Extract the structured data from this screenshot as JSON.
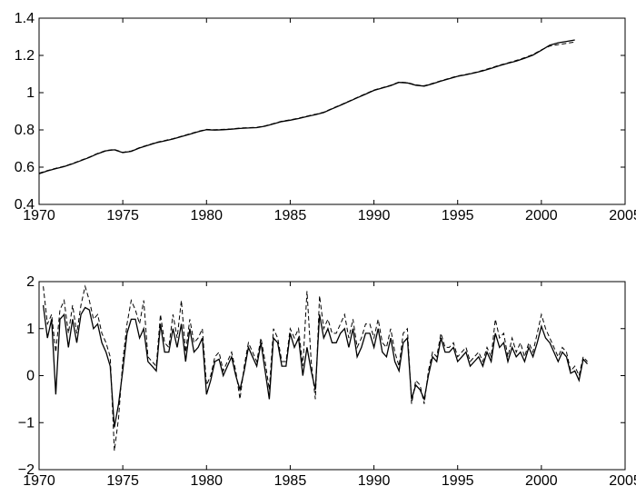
{
  "chart_data": [
    {
      "type": "line",
      "xlim": [
        1970,
        2005
      ],
      "ylim": [
        0.4,
        1.4
      ],
      "x_ticks": [
        1970,
        1975,
        1980,
        1985,
        1990,
        1995,
        2000,
        2005
      ],
      "y_ticks": [
        0.4,
        0.6,
        0.8,
        1,
        1.2,
        1.4
      ],
      "x_tick_labels": [
        "1970",
        "1975",
        "1980",
        "1985",
        "1990",
        "1995",
        "2000",
        "2005"
      ],
      "y_tick_labels": [
        "0.4",
        "0.6",
        "0.8",
        "1",
        "1.2",
        "1.4"
      ],
      "grid": false,
      "series": [
        {
          "style": "solid",
          "x": [
            1970.0,
            1970.5,
            1971.0,
            1971.5,
            1972.0,
            1972.5,
            1973.0,
            1973.5,
            1974.0,
            1974.5,
            1975.0,
            1975.5,
            1976.0,
            1976.5,
            1977.0,
            1977.5,
            1978.0,
            1978.5,
            1979.0,
            1979.5,
            1980.0,
            1980.5,
            1981.0,
            1981.5,
            1982.0,
            1982.5,
            1983.0,
            1983.5,
            1984.0,
            1984.5,
            1985.0,
            1985.5,
            1986.0,
            1986.5,
            1987.0,
            1987.5,
            1988.0,
            1988.5,
            1989.0,
            1989.5,
            1990.0,
            1990.5,
            1991.0,
            1991.5,
            1992.0,
            1992.5,
            1993.0,
            1993.5,
            1994.0,
            1994.5,
            1995.0,
            1995.5,
            1996.0,
            1996.5,
            1997.0,
            1997.5,
            1998.0,
            1998.5,
            1999.0,
            1999.5,
            2000.0,
            2000.5,
            2001.0,
            2001.5,
            2002.0
          ],
          "y": [
            0.565,
            0.58,
            0.592,
            0.603,
            0.618,
            0.635,
            0.652,
            0.672,
            0.688,
            0.693,
            0.678,
            0.685,
            0.703,
            0.717,
            0.731,
            0.741,
            0.751,
            0.764,
            0.777,
            0.79,
            0.801,
            0.799,
            0.801,
            0.804,
            0.808,
            0.81,
            0.812,
            0.82,
            0.832,
            0.845,
            0.852,
            0.861,
            0.872,
            0.882,
            0.893,
            0.913,
            0.932,
            0.952,
            0.972,
            0.992,
            1.012,
            1.025,
            1.038,
            1.055,
            1.052,
            1.04,
            1.035,
            1.048,
            1.062,
            1.075,
            1.088,
            1.096,
            1.106,
            1.117,
            1.13,
            1.145,
            1.158,
            1.17,
            1.185,
            1.202,
            1.228,
            1.255,
            1.268,
            1.275,
            1.283
          ]
        },
        {
          "style": "dashed",
          "x": [
            1970.0,
            1970.5,
            1971.0,
            1971.5,
            1972.0,
            1972.5,
            1973.0,
            1973.5,
            1974.0,
            1974.5,
            1975.0,
            1975.5,
            1976.0,
            1976.5,
            1977.0,
            1977.5,
            1978.0,
            1978.5,
            1979.0,
            1979.5,
            1980.0,
            1980.5,
            1981.0,
            1981.5,
            1982.0,
            1982.5,
            1983.0,
            1983.5,
            1984.0,
            1984.5,
            1985.0,
            1985.5,
            1986.0,
            1986.5,
            1987.0,
            1987.5,
            1988.0,
            1988.5,
            1989.0,
            1989.5,
            1990.0,
            1990.5,
            1991.0,
            1991.5,
            1992.0,
            1992.5,
            1993.0,
            1993.5,
            1994.0,
            1994.5,
            1995.0,
            1995.5,
            1996.0,
            1996.5,
            1997.0,
            1997.5,
            1998.0,
            1998.5,
            1999.0,
            1999.5,
            2000.0,
            2000.5,
            2001.0,
            2001.5,
            2002.0
          ],
          "y": [
            0.568,
            0.582,
            0.594,
            0.605,
            0.62,
            0.637,
            0.654,
            0.674,
            0.69,
            0.695,
            0.68,
            0.687,
            0.705,
            0.719,
            0.733,
            0.743,
            0.753,
            0.766,
            0.779,
            0.792,
            0.803,
            0.801,
            0.803,
            0.806,
            0.81,
            0.812,
            0.814,
            0.822,
            0.834,
            0.847,
            0.854,
            0.863,
            0.874,
            0.884,
            0.895,
            0.915,
            0.934,
            0.954,
            0.974,
            0.994,
            1.014,
            1.027,
            1.04,
            1.057,
            1.054,
            1.042,
            1.037,
            1.05,
            1.064,
            1.077,
            1.09,
            1.098,
            1.108,
            1.12,
            1.133,
            1.148,
            1.16,
            1.173,
            1.188,
            1.205,
            1.23,
            1.25,
            1.258,
            1.265,
            1.272
          ]
        }
      ]
    },
    {
      "type": "line",
      "xlim": [
        1970,
        2005
      ],
      "ylim": [
        -2,
        2
      ],
      "x_ticks": [
        1970,
        1975,
        1980,
        1985,
        1990,
        1995,
        2000,
        2005
      ],
      "y_ticks": [
        -2,
        -1,
        0,
        1,
        2
      ],
      "x_tick_labels": [
        "1970",
        "1975",
        "1980",
        "1985",
        "1990",
        "1995",
        "2000",
        "2005"
      ],
      "y_tick_labels": [
        "−2",
        "−1",
        "0",
        "1",
        "2"
      ],
      "grid": false,
      "series": [
        {
          "style": "solid",
          "x": [
            1970.25,
            1970.5,
            1970.75,
            1971.0,
            1971.25,
            1971.5,
            1971.75,
            1972.0,
            1972.25,
            1972.5,
            1972.75,
            1973.0,
            1973.25,
            1973.5,
            1973.75,
            1974.0,
            1974.25,
            1974.5,
            1974.75,
            1975.0,
            1975.25,
            1975.5,
            1975.75,
            1976.0,
            1976.25,
            1976.5,
            1976.75,
            1977.0,
            1977.25,
            1977.5,
            1977.75,
            1978.0,
            1978.25,
            1978.5,
            1978.75,
            1979.0,
            1979.25,
            1979.5,
            1979.75,
            1980.0,
            1980.25,
            1980.5,
            1980.75,
            1981.0,
            1981.25,
            1981.5,
            1981.75,
            1982.0,
            1982.25,
            1982.5,
            1982.75,
            1983.0,
            1983.25,
            1983.5,
            1983.75,
            1984.0,
            1984.25,
            1984.5,
            1984.75,
            1985.0,
            1985.25,
            1985.5,
            1985.75,
            1986.0,
            1986.25,
            1986.5,
            1986.75,
            1987.0,
            1987.25,
            1987.5,
            1987.75,
            1988.0,
            1988.25,
            1988.5,
            1988.75,
            1989.0,
            1989.25,
            1989.5,
            1989.75,
            1990.0,
            1990.25,
            1990.5,
            1990.75,
            1991.0,
            1991.25,
            1991.5,
            1991.75,
            1992.0,
            1992.25,
            1992.5,
            1992.75,
            1993.0,
            1993.25,
            1993.5,
            1993.75,
            1994.0,
            1994.25,
            1994.5,
            1994.75,
            1995.0,
            1995.25,
            1995.5,
            1995.75,
            1996.0,
            1996.25,
            1996.5,
            1996.75,
            1997.0,
            1997.25,
            1997.5,
            1997.75,
            1998.0,
            1998.25,
            1998.5,
            1998.75,
            1999.0,
            1999.25,
            1999.5,
            1999.75,
            2000.0,
            2000.25,
            2000.5,
            2000.75,
            2001.0,
            2001.25,
            2001.5,
            2001.75,
            2002.0,
            2002.25,
            2002.5,
            2002.75
          ],
          "y": [
            1.5,
            0.8,
            1.2,
            -0.4,
            1.2,
            1.3,
            0.6,
            1.2,
            0.7,
            1.3,
            1.45,
            1.4,
            1.0,
            1.1,
            0.7,
            0.5,
            0.2,
            -1.1,
            -0.6,
            0.1,
            0.9,
            1.2,
            1.2,
            0.8,
            1.0,
            0.3,
            0.2,
            0.1,
            1.1,
            0.5,
            0.5,
            1.0,
            0.6,
            1.1,
            0.3,
            1.0,
            0.5,
            0.6,
            0.8,
            -0.4,
            -0.1,
            0.3,
            0.35,
            0.0,
            0.2,
            0.4,
            0.0,
            -0.3,
            0.1,
            0.6,
            0.4,
            0.2,
            0.7,
            0.1,
            -0.5,
            0.8,
            0.7,
            0.2,
            0.2,
            0.9,
            0.6,
            0.8,
            0.0,
            0.6,
            0.1,
            -0.3,
            1.3,
            0.8,
            1.0,
            0.7,
            0.7,
            0.9,
            1.0,
            0.6,
            1.0,
            0.4,
            0.6,
            0.9,
            0.9,
            0.6,
            1.0,
            0.5,
            0.4,
            0.8,
            0.3,
            0.1,
            0.7,
            0.8,
            -0.5,
            -0.2,
            -0.3,
            -0.5,
            0.0,
            0.4,
            0.3,
            0.8,
            0.5,
            0.5,
            0.6,
            0.3,
            0.4,
            0.5,
            0.2,
            0.3,
            0.4,
            0.2,
            0.5,
            0.3,
            0.9,
            0.6,
            0.7,
            0.3,
            0.6,
            0.4,
            0.5,
            0.3,
            0.6,
            0.4,
            0.7,
            1.05,
            0.8,
            0.7,
            0.5,
            0.3,
            0.5,
            0.4,
            0.05,
            0.1,
            -0.1,
            0.35,
            0.25
          ]
        },
        {
          "style": "dashed",
          "x": [
            1970.25,
            1970.5,
            1970.75,
            1971.0,
            1971.25,
            1971.5,
            1971.75,
            1972.0,
            1972.25,
            1972.5,
            1972.75,
            1973.0,
            1973.25,
            1973.5,
            1973.75,
            1974.0,
            1974.25,
            1974.5,
            1974.75,
            1975.0,
            1975.25,
            1975.5,
            1975.75,
            1976.0,
            1976.25,
            1976.5,
            1976.75,
            1977.0,
            1977.25,
            1977.5,
            1977.75,
            1978.0,
            1978.25,
            1978.5,
            1978.75,
            1979.0,
            1979.25,
            1979.5,
            1979.75,
            1980.0,
            1980.25,
            1980.5,
            1980.75,
            1981.0,
            1981.25,
            1981.5,
            1981.75,
            1982.0,
            1982.25,
            1982.5,
            1982.75,
            1983.0,
            1983.25,
            1983.5,
            1983.75,
            1984.0,
            1984.25,
            1984.5,
            1984.75,
            1985.0,
            1985.25,
            1985.5,
            1985.75,
            1986.0,
            1986.25,
            1986.5,
            1986.75,
            1987.0,
            1987.25,
            1987.5,
            1987.75,
            1988.0,
            1988.25,
            1988.5,
            1988.75,
            1989.0,
            1989.25,
            1989.5,
            1989.75,
            1990.0,
            1990.25,
            1990.5,
            1990.75,
            1991.0,
            1991.25,
            1991.5,
            1991.75,
            1992.0,
            1992.25,
            1992.5,
            1992.75,
            1993.0,
            1993.25,
            1993.5,
            1993.75,
            1994.0,
            1994.25,
            1994.5,
            1994.75,
            1995.0,
            1995.25,
            1995.5,
            1995.75,
            1996.0,
            1996.25,
            1996.5,
            1996.75,
            1997.0,
            1997.25,
            1997.5,
            1997.75,
            1998.0,
            1998.25,
            1998.5,
            1998.75,
            1999.0,
            1999.25,
            1999.5,
            1999.75,
            2000.0,
            2000.25,
            2000.5,
            2000.75,
            2001.0,
            2001.25,
            2001.5,
            2001.75,
            2002.0,
            2002.25,
            2002.5,
            2002.75
          ],
          "y": [
            1.9,
            1.1,
            1.3,
            0.5,
            1.4,
            1.6,
            0.9,
            1.5,
            0.9,
            1.5,
            1.9,
            1.6,
            1.2,
            1.3,
            0.9,
            0.7,
            0.4,
            -1.6,
            -0.9,
            0.3,
            1.1,
            1.6,
            1.4,
            1.1,
            1.6,
            0.4,
            0.3,
            0.2,
            1.3,
            0.7,
            0.6,
            1.3,
            0.8,
            1.6,
            0.5,
            1.2,
            0.7,
            0.8,
            1.0,
            -0.2,
            0.0,
            0.4,
            0.5,
            0.1,
            0.3,
            0.5,
            0.1,
            -0.5,
            0.2,
            0.7,
            0.5,
            0.3,
            0.8,
            0.3,
            -0.3,
            1.0,
            0.8,
            0.3,
            0.3,
            1.0,
            0.8,
            1.0,
            0.2,
            1.8,
            0.3,
            -0.5,
            1.7,
            1.0,
            1.2,
            0.9,
            0.9,
            1.1,
            1.3,
            0.8,
            1.2,
            0.6,
            0.8,
            1.1,
            1.1,
            0.8,
            1.2,
            0.7,
            0.6,
            1.0,
            0.5,
            0.2,
            0.9,
            1.0,
            -0.6,
            -0.1,
            -0.2,
            -0.6,
            0.1,
            0.5,
            0.4,
            0.9,
            0.6,
            0.6,
            0.7,
            0.4,
            0.5,
            0.6,
            0.3,
            0.4,
            0.5,
            0.3,
            0.6,
            0.4,
            1.2,
            0.8,
            0.9,
            0.4,
            0.8,
            0.5,
            0.7,
            0.4,
            0.7,
            0.5,
            0.9,
            1.3,
            1.0,
            0.8,
            0.6,
            0.4,
            0.6,
            0.5,
            0.1,
            0.2,
            0.0,
            0.4,
            0.3
          ]
        }
      ]
    }
  ]
}
